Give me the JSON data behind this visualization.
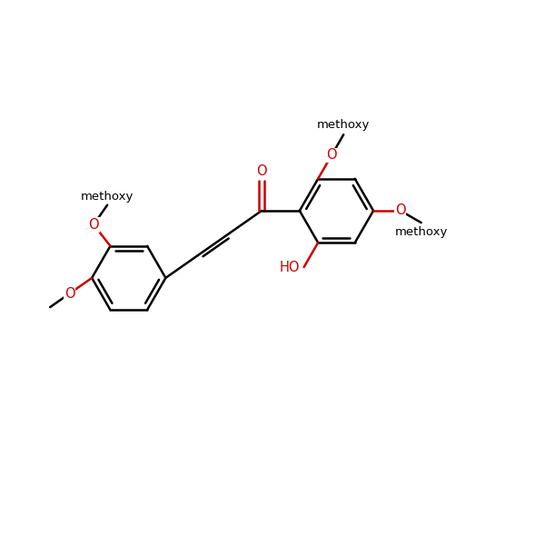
{
  "bg_color": "#ffffff",
  "bond_color": "#000000",
  "hetero_color": "#cc0000",
  "lw": 1.8,
  "fs": 10.5,
  "fig_size": [
    6.0,
    6.0
  ],
  "dpi": 100,
  "xlim": [
    -0.5,
    9.5
  ],
  "ylim": [
    -2.8,
    3.2
  ]
}
